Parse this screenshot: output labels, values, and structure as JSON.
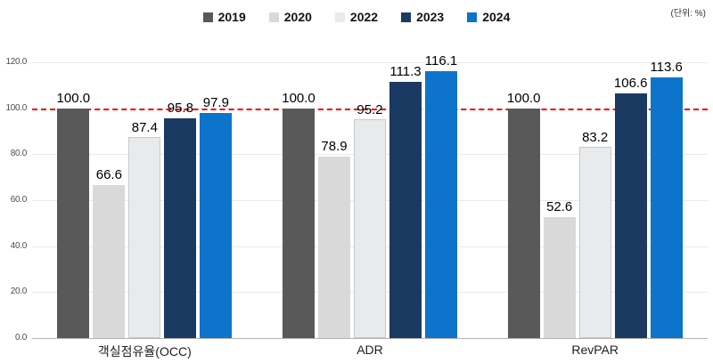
{
  "unit_label": "(단위: %)",
  "legend": [
    {
      "label": "2019",
      "color": "#595959"
    },
    {
      "label": "2020",
      "color": "#d9d9d9"
    },
    {
      "label": "2022",
      "color": "#e8eaec"
    },
    {
      "label": "2023",
      "color": "#1b3a62"
    },
    {
      "label": "2024",
      "color": "#0d74cc"
    }
  ],
  "chart_data": {
    "type": "bar",
    "title": "",
    "categories": [
      "객실점유율(OCC)",
      "ADR",
      "RevPAR"
    ],
    "series": [
      {
        "name": "2019",
        "color": "#595959",
        "values": [
          100.0,
          100.0,
          100.0
        ]
      },
      {
        "name": "2020",
        "color": "#d9d9d9",
        "values": [
          66.6,
          78.9,
          52.6
        ]
      },
      {
        "name": "2022",
        "color": "#e8eaec",
        "border": "#c6cbd0",
        "values": [
          87.4,
          95.2,
          83.2
        ]
      },
      {
        "name": "2023",
        "color": "#1b3a62",
        "values": [
          95.8,
          111.3,
          106.6
        ]
      },
      {
        "name": "2024",
        "color": "#0d74cc",
        "values": [
          97.9,
          116.1,
          113.6
        ]
      }
    ],
    "ylim": [
      0,
      120
    ],
    "yticks": [
      "0.0",
      "20.0",
      "40.0",
      "60.0",
      "80.0",
      "100.0",
      "120.0"
    ],
    "baseline": {
      "value": 100,
      "color": "#ee0000",
      "style": "dashed"
    },
    "grid": "horizontal",
    "legend_position": "top",
    "value_labels": true
  }
}
